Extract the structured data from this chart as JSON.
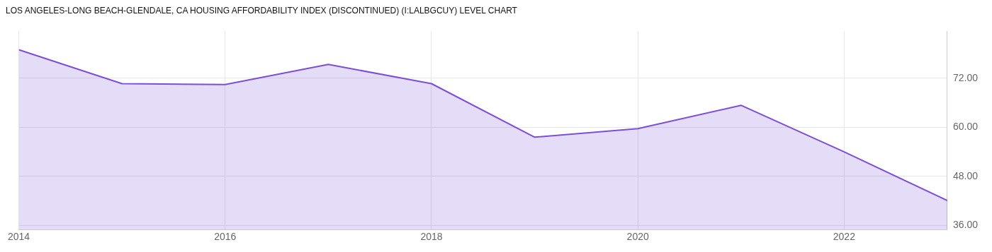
{
  "chart_data": {
    "type": "area",
    "title": "LOS ANGELES-LONG BEACH-GLENDALE, CA HOUSING AFFORDABILITY INDEX (DISCONTINUED) (I:LALBGCUY) LEVEL CHART",
    "x": [
      2014,
      2015,
      2016,
      2017,
      2018,
      2019,
      2020,
      2021,
      2022,
      2023
    ],
    "series": [
      {
        "color": "#7b4fd6",
        "values": [
          79.0,
          70.7,
          70.5,
          75.4,
          70.7,
          57.6,
          59.7,
          65.4,
          54.0,
          42.1
        ]
      }
    ],
    "xlim": [
      2014,
      2023
    ],
    "xticks": [
      2014,
      2016,
      2018,
      2020,
      2022
    ],
    "ylim": [
      35,
      83.5
    ],
    "yticks": [
      {
        "value": 36,
        "label": "36.00"
      },
      {
        "value": 48,
        "label": "48.00"
      },
      {
        "value": 60,
        "label": "60.00"
      },
      {
        "value": 72,
        "label": "72.00"
      }
    ],
    "grid": true,
    "legend": false
  }
}
